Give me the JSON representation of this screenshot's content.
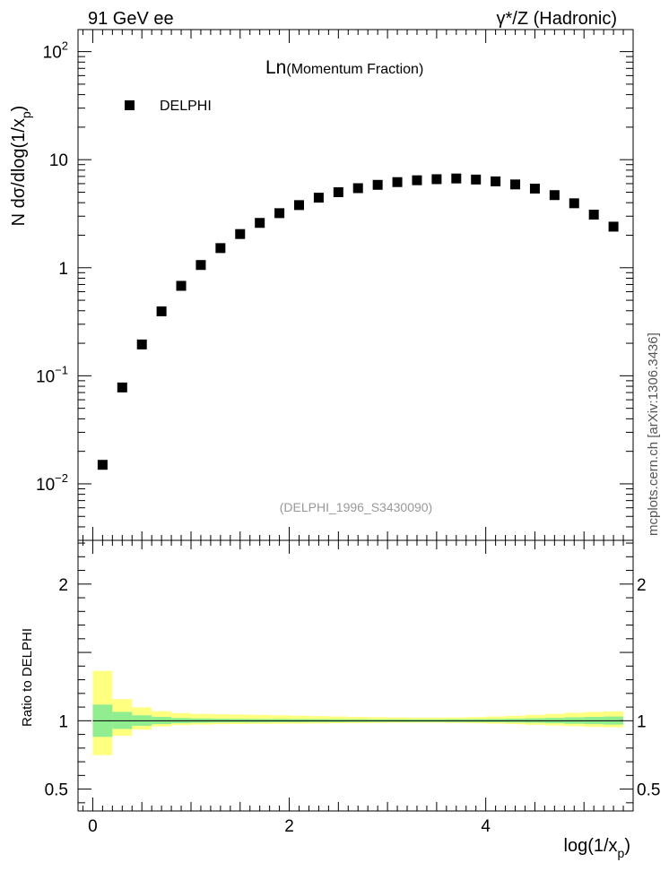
{
  "header": {
    "left": "91 GeV ee",
    "right": "γ*/Z (Hadronic)"
  },
  "side_caption": "mcplots.cern.ch [arXiv:1306.3436]",
  "chart_data": [
    {
      "type": "scatter",
      "title_main": "Ln",
      "title_sub": "(Momentum Fraction)",
      "ylabel": "N dσ/dlog(1/x_p)",
      "yscale": "log",
      "ylim": [
        0.003,
        160
      ],
      "xlim": [
        -0.15,
        5.5
      ],
      "yticks": [
        {
          "value": 0.01,
          "base": "10",
          "exp": "−2"
        },
        {
          "value": 0.1,
          "base": "10",
          "exp": "−1"
        },
        {
          "value": 1,
          "label": "1"
        },
        {
          "value": 10,
          "label": "10"
        },
        {
          "value": 100,
          "base": "10",
          "exp": "2"
        }
      ],
      "legend": {
        "placement": "top-left",
        "entries": [
          "DELPHI"
        ]
      },
      "annotation": "(DELPHI_1996_S3430090)",
      "series": [
        {
          "name": "DELPHI",
          "x": [
            0.1,
            0.3,
            0.5,
            0.7,
            0.9,
            1.1,
            1.3,
            1.5,
            1.7,
            1.9,
            2.1,
            2.3,
            2.5,
            2.7,
            2.9,
            3.1,
            3.3,
            3.5,
            3.7,
            3.9,
            4.1,
            4.3,
            4.5,
            4.7,
            4.9,
            5.1,
            5.3
          ],
          "y": [
            0.015,
            0.078,
            0.195,
            0.395,
            0.68,
            1.06,
            1.52,
            2.05,
            2.6,
            3.2,
            3.8,
            4.45,
            5.0,
            5.45,
            5.85,
            6.2,
            6.45,
            6.6,
            6.7,
            6.55,
            6.3,
            5.9,
            5.4,
            4.7,
            3.95,
            3.1,
            2.4
          ]
        }
      ]
    },
    {
      "type": "area",
      "ylabel": "Ratio to DELPHI",
      "xlabel": "log(1/x_p)",
      "ylim": [
        0.34,
        2.32
      ],
      "xlim": [
        -0.15,
        5.5
      ],
      "yticks": [
        0.5,
        1,
        2
      ],
      "xticks": [
        0,
        2,
        4
      ],
      "bins": [
        {
          "lo": 0.0,
          "hi": 0.2,
          "inner": [
            0.882,
            1.118
          ],
          "outer": [
            0.748,
            1.365
          ]
        },
        {
          "lo": 0.2,
          "hi": 0.4,
          "inner": [
            0.94,
            1.065
          ],
          "outer": [
            0.89,
            1.158
          ]
        },
        {
          "lo": 0.4,
          "hi": 0.6,
          "inner": [
            0.963,
            1.04
          ],
          "outer": [
            0.935,
            1.098
          ]
        },
        {
          "lo": 0.6,
          "hi": 0.8,
          "inner": [
            0.975,
            1.028
          ],
          "outer": [
            0.958,
            1.07
          ]
        },
        {
          "lo": 0.8,
          "hi": 1.0,
          "inner": [
            0.982,
            1.02
          ],
          "outer": [
            0.968,
            1.056
          ]
        },
        {
          "lo": 1.0,
          "hi": 1.2,
          "inner": [
            0.985,
            1.017
          ],
          "outer": [
            0.972,
            1.05
          ]
        },
        {
          "lo": 1.2,
          "hi": 1.4,
          "inner": [
            0.987,
            1.015
          ],
          "outer": [
            0.975,
            1.047
          ]
        },
        {
          "lo": 1.4,
          "hi": 1.6,
          "inner": [
            0.988,
            1.014
          ],
          "outer": [
            0.976,
            1.045
          ]
        },
        {
          "lo": 1.6,
          "hi": 1.8,
          "inner": [
            0.988,
            1.013
          ],
          "outer": [
            0.977,
            1.043
          ]
        },
        {
          "lo": 1.8,
          "hi": 2.0,
          "inner": [
            0.989,
            1.013
          ],
          "outer": [
            0.978,
            1.04
          ]
        },
        {
          "lo": 2.0,
          "hi": 2.2,
          "inner": [
            0.989,
            1.012
          ],
          "outer": [
            0.979,
            1.037
          ]
        },
        {
          "lo": 2.2,
          "hi": 2.4,
          "inner": [
            0.99,
            1.012
          ],
          "outer": [
            0.98,
            1.034
          ]
        },
        {
          "lo": 2.4,
          "hi": 2.6,
          "inner": [
            0.99,
            1.011
          ],
          "outer": [
            0.982,
            1.031
          ]
        },
        {
          "lo": 2.6,
          "hi": 2.8,
          "inner": [
            0.991,
            1.011
          ],
          "outer": [
            0.983,
            1.028
          ]
        },
        {
          "lo": 2.8,
          "hi": 3.0,
          "inner": [
            0.991,
            1.01
          ],
          "outer": [
            0.984,
            1.026
          ]
        },
        {
          "lo": 3.0,
          "hi": 3.2,
          "inner": [
            0.991,
            1.01
          ],
          "outer": [
            0.985,
            1.024
          ]
        },
        {
          "lo": 3.2,
          "hi": 3.4,
          "inner": [
            0.991,
            1.01
          ],
          "outer": [
            0.985,
            1.023
          ]
        },
        {
          "lo": 3.4,
          "hi": 3.6,
          "inner": [
            0.991,
            1.01
          ],
          "outer": [
            0.985,
            1.023
          ]
        },
        {
          "lo": 3.6,
          "hi": 3.8,
          "inner": [
            0.99,
            1.011
          ],
          "outer": [
            0.984,
            1.024
          ]
        },
        {
          "lo": 3.8,
          "hi": 4.0,
          "inner": [
            0.99,
            1.012
          ],
          "outer": [
            0.982,
            1.027
          ]
        },
        {
          "lo": 4.0,
          "hi": 4.2,
          "inner": [
            0.989,
            1.013
          ],
          "outer": [
            0.979,
            1.031
          ]
        },
        {
          "lo": 4.2,
          "hi": 4.4,
          "inner": [
            0.987,
            1.015
          ],
          "outer": [
            0.975,
            1.036
          ]
        },
        {
          "lo": 4.4,
          "hi": 4.6,
          "inner": [
            0.985,
            1.018
          ],
          "outer": [
            0.97,
            1.043
          ]
        },
        {
          "lo": 4.6,
          "hi": 4.8,
          "inner": [
            0.982,
            1.021
          ],
          "outer": [
            0.965,
            1.05
          ]
        },
        {
          "lo": 4.8,
          "hi": 5.0,
          "inner": [
            0.978,
            1.025
          ],
          "outer": [
            0.96,
            1.058
          ]
        },
        {
          "lo": 5.0,
          "hi": 5.2,
          "inner": [
            0.975,
            1.028
          ],
          "outer": [
            0.955,
            1.064
          ]
        },
        {
          "lo": 5.2,
          "hi": 5.4,
          "inner": [
            0.972,
            1.031
          ],
          "outer": [
            0.952,
            1.068
          ]
        }
      ]
    }
  ],
  "colors": {
    "inner_band": "#90ee90",
    "outer_band": "#ffff80",
    "marker": "#000000",
    "annotation": "#999999"
  }
}
